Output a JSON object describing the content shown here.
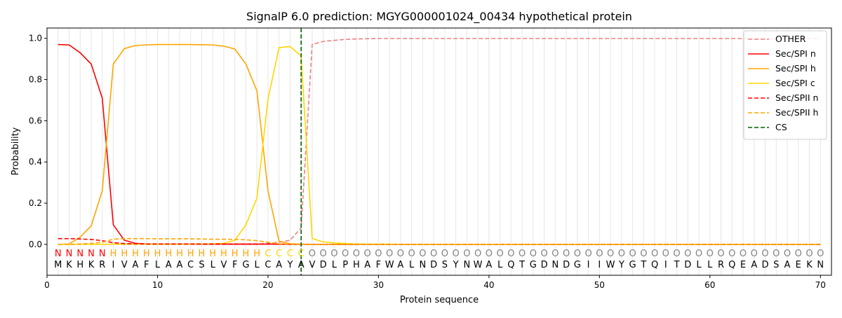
{
  "chart_data": {
    "type": "line",
    "title": "SignalP 6.0 prediction: MGYG000001024_00434 hypothetical protein",
    "xlabel": "Protein sequence",
    "ylabel": "Probability",
    "xlim": [
      0,
      71
    ],
    "ylim": [
      -0.15,
      1.05
    ],
    "xticks": [
      0,
      10,
      20,
      30,
      40,
      50,
      60,
      70
    ],
    "yticks": [
      0.0,
      0.2,
      0.4,
      0.6,
      0.8,
      1.0
    ],
    "grid": "vertical lines at each residue position",
    "legend_position": "top-right",
    "sequence": [
      "M",
      "K",
      "H",
      "K",
      "R",
      "I",
      "V",
      "A",
      "F",
      "L",
      "A",
      "A",
      "C",
      "S",
      "L",
      "V",
      "F",
      "G",
      "L",
      "C",
      "A",
      "Y",
      "A",
      "V",
      "D",
      "L",
      "P",
      "H",
      "A",
      "F",
      "W",
      "A",
      "L",
      "N",
      "D",
      "S",
      "Y",
      "N",
      "W",
      "A",
      "L",
      "Q",
      "T",
      "G",
      "D",
      "N",
      "D",
      "G",
      "I",
      "I",
      "W",
      "Y",
      "G",
      "T",
      "Q",
      "I",
      "T",
      "D",
      "L",
      "L",
      "R",
      "Q",
      "E",
      "A",
      "D",
      "S",
      "A",
      "E",
      "K",
      "N"
    ],
    "region_labels": [
      "N",
      "N",
      "N",
      "N",
      "N",
      "H",
      "H",
      "H",
      "H",
      "H",
      "H",
      "H",
      "H",
      "H",
      "H",
      "H",
      "H",
      "H",
      "H",
      "C",
      "C",
      "C",
      "C",
      "O",
      "O",
      "O",
      "O",
      "O",
      "O",
      "O",
      "O",
      "O",
      "O",
      "O",
      "O",
      "O",
      "O",
      "O",
      "O",
      "O",
      "O",
      "O",
      "O",
      "O",
      "O",
      "O",
      "O",
      "O",
      "O",
      "O",
      "O",
      "O",
      "O",
      "O",
      "O",
      "O",
      "O",
      "O",
      "O",
      "O",
      "O",
      "O",
      "O",
      "O",
      "O",
      "O",
      "O",
      "O",
      "O",
      "O"
    ],
    "region_colors": {
      "N": "#ff0000",
      "H": "#ffa500",
      "C": "#ffd700",
      "O": "#808080"
    },
    "cleavage_site": 23,
    "series": [
      {
        "name": "OTHER",
        "color": "#f08080",
        "dash": true,
        "values": [
          0.0,
          0.0,
          0.0,
          0.0,
          0.0,
          0.0,
          0.0,
          0.0,
          0.0,
          0.0,
          0.0,
          0.0,
          0.0,
          0.0,
          0.0,
          0.0,
          0.0,
          0.0,
          0.0,
          0.005,
          0.01,
          0.02,
          0.08,
          0.97,
          0.985,
          0.99,
          0.995,
          0.997,
          0.998,
          0.999,
          0.999,
          0.999,
          0.999,
          0.999,
          0.999,
          0.999,
          0.999,
          0.999,
          0.999,
          0.999,
          0.999,
          0.999,
          0.999,
          0.999,
          0.999,
          0.999,
          0.999,
          0.999,
          0.999,
          0.999,
          0.999,
          0.999,
          0.999,
          0.999,
          0.999,
          0.999,
          0.999,
          0.999,
          0.999,
          0.999,
          0.999,
          0.999,
          0.999,
          0.999,
          0.999,
          0.999,
          0.999,
          0.999,
          0.999,
          0.999
        ]
      },
      {
        "name": "Sec/SPI n",
        "color": "#ff0000",
        "dash": false,
        "values": [
          0.97,
          0.968,
          0.93,
          0.875,
          0.71,
          0.095,
          0.02,
          0.005,
          0.002,
          0.001,
          0.001,
          0.001,
          0.001,
          0.001,
          0.001,
          0.001,
          0.001,
          0.001,
          0.001,
          0.001,
          0.001,
          0.0,
          0.0,
          0.0,
          0.0,
          0.0,
          0.0,
          0.0,
          0.0,
          0.0,
          0.0,
          0.0,
          0.0,
          0.0,
          0.0,
          0.0,
          0.0,
          0.0,
          0.0,
          0.0,
          0.0,
          0.0,
          0.0,
          0.0,
          0.0,
          0.0,
          0.0,
          0.0,
          0.0,
          0.0,
          0.0,
          0.0,
          0.0,
          0.0,
          0.0,
          0.0,
          0.0,
          0.0,
          0.0,
          0.0,
          0.0,
          0.0,
          0.0,
          0.0,
          0.0,
          0.0,
          0.0,
          0.0,
          0.0,
          0.0
        ]
      },
      {
        "name": "Sec/SPI h",
        "color": "#ffa500",
        "dash": false,
        "values": [
          0.0,
          0.002,
          0.035,
          0.09,
          0.26,
          0.875,
          0.95,
          0.965,
          0.968,
          0.97,
          0.97,
          0.97,
          0.97,
          0.969,
          0.968,
          0.962,
          0.948,
          0.875,
          0.745,
          0.26,
          0.015,
          0.003,
          0.001,
          0.0,
          0.0,
          0.0,
          0.0,
          0.0,
          0.0,
          0.0,
          0.0,
          0.0,
          0.0,
          0.0,
          0.0,
          0.0,
          0.0,
          0.0,
          0.0,
          0.0,
          0.0,
          0.0,
          0.0,
          0.0,
          0.0,
          0.0,
          0.0,
          0.0,
          0.0,
          0.0,
          0.0,
          0.0,
          0.0,
          0.0,
          0.0,
          0.0,
          0.0,
          0.0,
          0.0,
          0.0,
          0.0,
          0.0,
          0.0,
          0.0,
          0.0,
          0.0,
          0.0,
          0.0,
          0.0,
          0.0
        ]
      },
      {
        "name": "Sec/SPI c",
        "color": "#ffd700",
        "dash": false,
        "values": [
          0.0,
          0.0,
          0.0,
          0.0,
          0.0,
          0.001,
          0.001,
          0.001,
          0.001,
          0.001,
          0.001,
          0.001,
          0.001,
          0.002,
          0.003,
          0.005,
          0.02,
          0.095,
          0.225,
          0.705,
          0.955,
          0.96,
          0.915,
          0.028,
          0.012,
          0.007,
          0.004,
          0.002,
          0.001,
          0.001,
          0.001,
          0.0,
          0.0,
          0.0,
          0.0,
          0.0,
          0.0,
          0.0,
          0.0,
          0.0,
          0.0,
          0.0,
          0.0,
          0.0,
          0.0,
          0.0,
          0.0,
          0.0,
          0.0,
          0.0,
          0.0,
          0.0,
          0.0,
          0.0,
          0.0,
          0.0,
          0.0,
          0.0,
          0.0,
          0.0,
          0.0,
          0.0,
          0.0,
          0.0,
          0.0,
          0.0,
          0.0,
          0.0,
          0.0,
          0.0
        ]
      },
      {
        "name": "Sec/SPII n",
        "color": "#ff0000",
        "dash": true,
        "values": [
          0.028,
          0.028,
          0.026,
          0.024,
          0.018,
          0.008,
          0.004,
          0.003,
          0.002,
          0.002,
          0.002,
          0.002,
          0.002,
          0.002,
          0.002,
          0.002,
          0.002,
          0.002,
          0.002,
          0.002,
          0.001,
          0.0,
          0.0,
          0.0,
          0.0,
          0.0,
          0.0,
          0.0,
          0.0,
          0.0,
          0.0,
          0.0,
          0.0,
          0.0,
          0.0,
          0.0,
          0.0,
          0.0,
          0.0,
          0.0,
          0.0,
          0.0,
          0.0,
          0.0,
          0.0,
          0.0,
          0.0,
          0.0,
          0.0,
          0.0,
          0.0,
          0.0,
          0.0,
          0.0,
          0.0,
          0.0,
          0.0,
          0.0,
          0.0,
          0.0,
          0.0,
          0.0,
          0.0,
          0.0,
          0.0,
          0.0,
          0.0,
          0.0,
          0.0,
          0.0
        ]
      },
      {
        "name": "Sec/SPII h",
        "color": "#ffa500",
        "dash": true,
        "values": [
          0.0,
          0.0,
          0.002,
          0.005,
          0.01,
          0.025,
          0.028,
          0.028,
          0.028,
          0.027,
          0.027,
          0.027,
          0.027,
          0.026,
          0.025,
          0.025,
          0.024,
          0.022,
          0.018,
          0.01,
          0.003,
          0.001,
          0.0,
          0.0,
          0.0,
          0.0,
          0.0,
          0.0,
          0.0,
          0.0,
          0.0,
          0.0,
          0.0,
          0.0,
          0.0,
          0.0,
          0.0,
          0.0,
          0.0,
          0.0,
          0.0,
          0.0,
          0.0,
          0.0,
          0.0,
          0.0,
          0.0,
          0.0,
          0.0,
          0.0,
          0.0,
          0.0,
          0.0,
          0.0,
          0.0,
          0.0,
          0.0,
          0.0,
          0.0,
          0.0,
          0.0,
          0.0,
          0.0,
          0.0,
          0.0,
          0.0,
          0.0,
          0.0,
          0.0,
          0.0
        ]
      },
      {
        "name": "CS",
        "color": "#006400",
        "dash": true,
        "values": []
      }
    ]
  }
}
